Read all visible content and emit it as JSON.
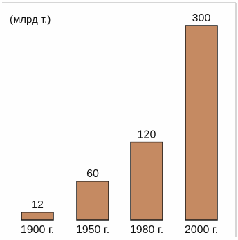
{
  "chart_data": {
    "type": "bar",
    "unit_label": "(млрд т.)",
    "categories": [
      "1900 г.",
      "1950 г.",
      "1980 г.",
      "2000 г."
    ],
    "values": [
      12,
      60,
      120,
      300
    ],
    "value_labels": [
      "12",
      "60",
      "120",
      "300"
    ],
    "ylim": [
      0,
      300
    ],
    "grid": false,
    "bar_color": "#c58a62",
    "bar_outline_color": "#1a1a1a",
    "frame_color": "#c9c9c9"
  }
}
